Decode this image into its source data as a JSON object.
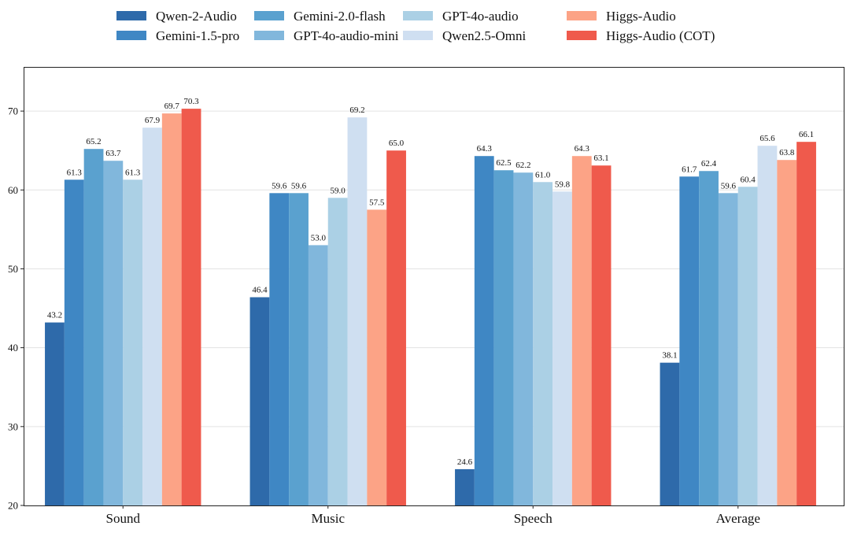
{
  "chart_data": {
    "type": "bar",
    "title": "",
    "xlabel": "",
    "ylabel": "",
    "ylim": [
      20,
      75.6
    ],
    "yticks": [
      20,
      30,
      40,
      50,
      60,
      70
    ],
    "grid": "horizontal",
    "legend_placement": "top-center",
    "categories": [
      "Sound",
      "Music",
      "Speech",
      "Average"
    ],
    "series": [
      {
        "name": "Qwen-2-Audio",
        "color": "#2e6aaa",
        "values": [
          43.2,
          46.4,
          24.6,
          38.1
        ]
      },
      {
        "name": "Gemini-1.5-pro",
        "color": "#3f87c4",
        "values": [
          61.3,
          59.6,
          64.3,
          61.7
        ]
      },
      {
        "name": "Gemini-2.0-flash",
        "color": "#5aa1cf",
        "values": [
          65.2,
          59.6,
          62.5,
          62.4
        ]
      },
      {
        "name": "GPT-4o-audio-mini",
        "color": "#81b7dc",
        "values": [
          63.7,
          53.0,
          62.2,
          59.6
        ]
      },
      {
        "name": "GPT-4o-audio",
        "color": "#abd0e5",
        "values": [
          61.3,
          59.0,
          61.0,
          60.4
        ]
      },
      {
        "name": "Qwen2.5-Omni",
        "color": "#cfdff1",
        "values": [
          67.9,
          69.2,
          59.8,
          65.6
        ]
      },
      {
        "name": "Higgs-Audio",
        "color": "#fca386",
        "values": [
          69.7,
          57.5,
          64.3,
          63.8
        ]
      },
      {
        "name": "Higgs-Audio (COT)",
        "color": "#ef5a4c",
        "values": [
          70.3,
          65.0,
          63.1,
          66.1
        ]
      }
    ]
  }
}
